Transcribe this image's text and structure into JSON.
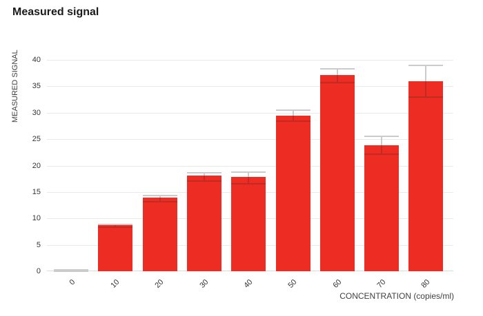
{
  "title": "Measured signal",
  "y_axis_title": "MEASURED SIGNAL",
  "x_axis_title": "CONCENTRATION (copies/ml)",
  "colors": {
    "bar": "#ED2C24",
    "error_on_bar": "#C12B22",
    "error_gray": "#CBCBCB",
    "gridline": "#E9E9E9",
    "axis_line": "#D9D9D9",
    "title_text": "#1A1A1A",
    "axis_title_text": "#3F3F3F",
    "tick_text": "#333333",
    "background": "#FFFFFF"
  },
  "chart_data": {
    "type": "bar",
    "title": "Measured signal",
    "xlabel": "CONCENTRATION (copies/ml)",
    "ylabel": "MEASURED SIGNAL",
    "categories": [
      "0",
      "10",
      "20",
      "30",
      "40",
      "50",
      "60",
      "70",
      "80"
    ],
    "values": [
      0,
      8.7,
      13.9,
      18.1,
      17.8,
      29.5,
      37.1,
      23.9,
      36.0
    ],
    "error_low": [
      0,
      8.4,
      13.2,
      17.1,
      16.5,
      28.4,
      35.7,
      22.1,
      32.9
    ],
    "error_high": [
      0.2,
      8.9,
      14.3,
      18.6,
      18.7,
      30.5,
      38.3,
      25.5,
      39.0
    ],
    "ylim": [
      0,
      40
    ],
    "ytick_step": 5,
    "yticks": [
      0,
      5,
      10,
      15,
      20,
      25,
      30,
      35,
      40
    ],
    "grid": true,
    "legend": false,
    "bar_color": "#ED2C24",
    "error_bar_color": "#CBCBCB"
  }
}
